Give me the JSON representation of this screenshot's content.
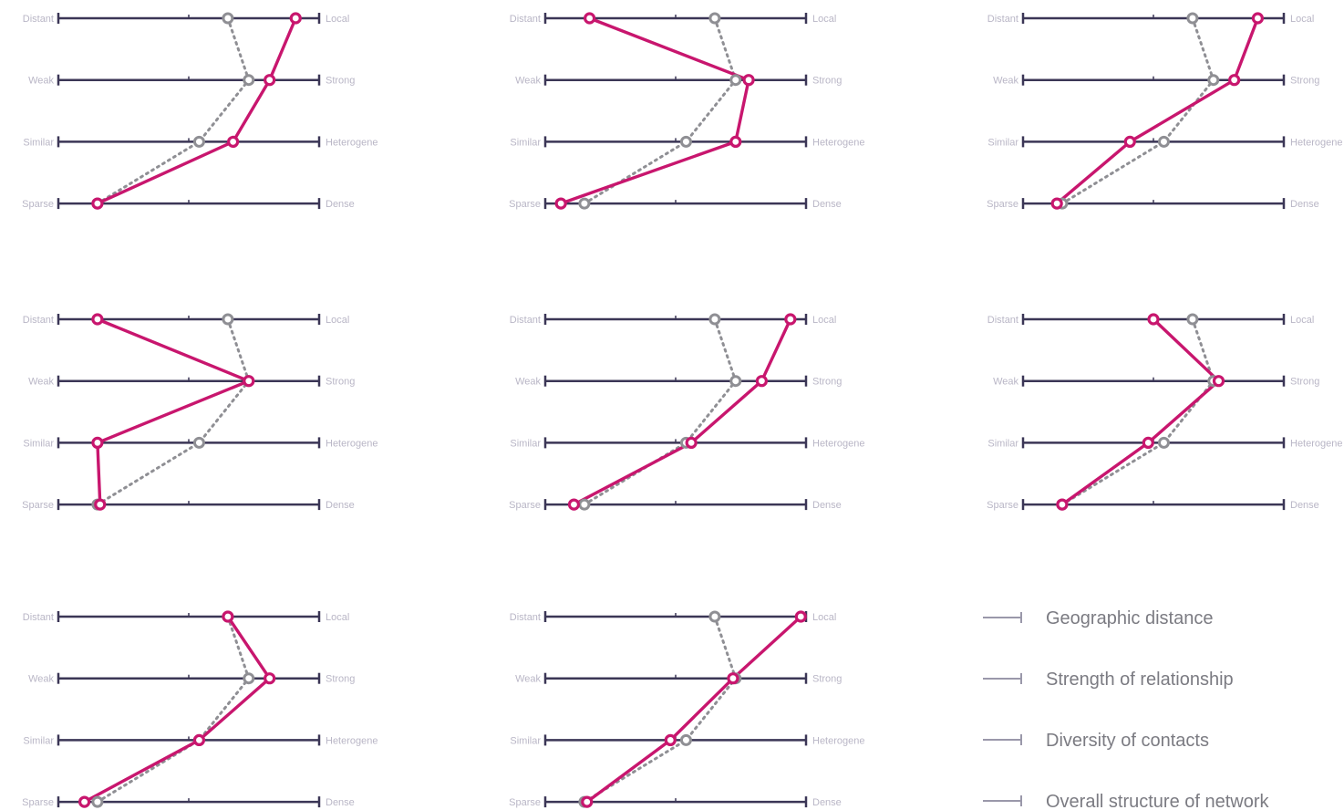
{
  "chart_data": {
    "type": "parallel-axis profiles",
    "axes": [
      {
        "left": "Distant",
        "right": "Local"
      },
      {
        "left": "Weak",
        "right": "Strong"
      },
      {
        "left": "Similar",
        "right": "Heterogene"
      },
      {
        "left": "Sparse",
        "right": "Dense"
      }
    ],
    "scale": [
      0,
      1
    ],
    "panels": [
      {
        "main": [
          0.91,
          0.81,
          0.67,
          0.15
        ],
        "avg": [
          0.65,
          0.73,
          0.54,
          0.15
        ]
      },
      {
        "main": [
          0.17,
          0.78,
          0.73,
          0.06
        ],
        "avg": [
          0.65,
          0.73,
          0.54,
          0.15
        ]
      },
      {
        "main": [
          0.9,
          0.81,
          0.41,
          0.13
        ],
        "avg": [
          0.65,
          0.73,
          0.54,
          0.15
        ]
      },
      {
        "main": [
          0.15,
          0.73,
          0.15,
          0.16
        ],
        "avg": [
          0.65,
          0.73,
          0.54,
          0.15
        ]
      },
      {
        "main": [
          0.94,
          0.83,
          0.56,
          0.11
        ],
        "avg": [
          0.65,
          0.73,
          0.54,
          0.15
        ]
      },
      {
        "main": [
          0.5,
          0.75,
          0.48,
          0.15
        ],
        "avg": [
          0.65,
          0.73,
          0.54,
          0.15
        ]
      },
      {
        "main": [
          0.65,
          0.81,
          0.54,
          0.1
        ],
        "avg": [
          0.65,
          0.73,
          0.54,
          0.15
        ]
      },
      {
        "main": [
          0.98,
          0.72,
          0.48,
          0.16
        ],
        "avg": [
          0.65,
          0.73,
          0.54,
          0.15
        ]
      }
    ],
    "legend": [
      "Geographic distance",
      "Strength of relationship",
      "Diversity of contacts",
      "Overall structure of network"
    ],
    "colors": {
      "main": "#c8166e",
      "avg": "#8f8f94",
      "axis": "#3b3656"
    }
  }
}
